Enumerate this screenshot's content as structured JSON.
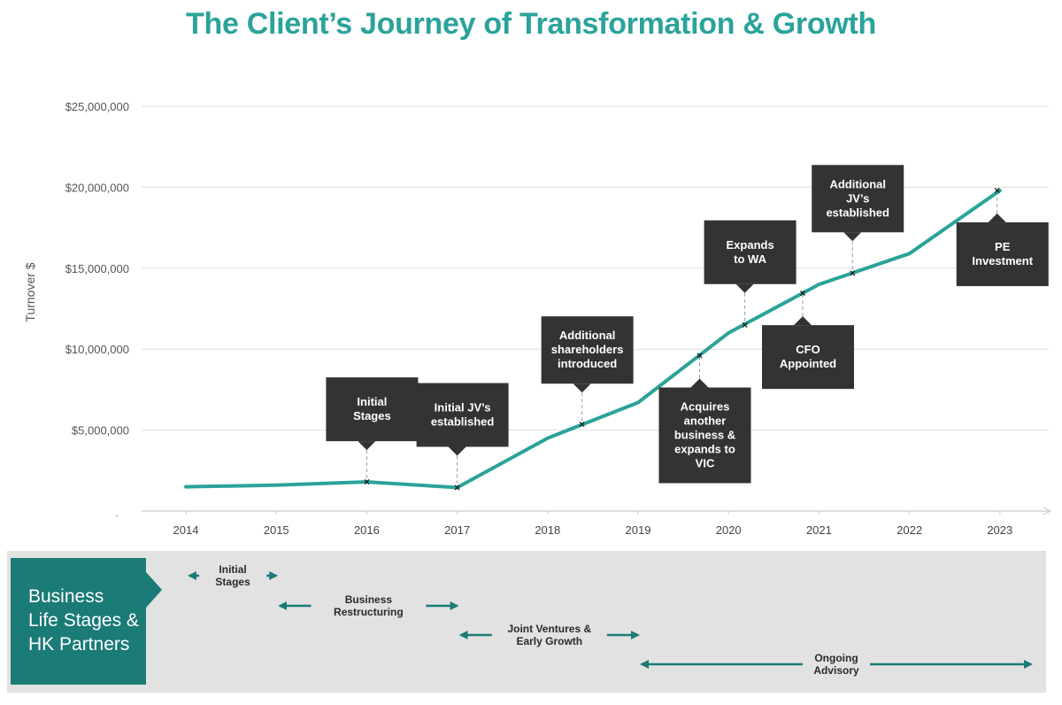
{
  "header": {
    "title": "The Client’s Journey of Transformation & Growth"
  },
  "chart_data": {
    "type": "line",
    "title": "The Client’s Journey of Transformation & Growth",
    "xlabel": "",
    "ylabel": "Turnover $",
    "ylim": [
      0,
      25000000
    ],
    "y_ticks": [
      "$5,000,000",
      "$10,000,000",
      "$15,000,000",
      "$20,000,000",
      "$25,000,000"
    ],
    "y_tick_values": [
      5000000,
      10000000,
      15000000,
      20000000,
      25000000
    ],
    "zero_tick": ".",
    "categories": [
      "2014",
      "2015",
      "2016",
      "2017",
      "2018",
      "2019",
      "2020",
      "2021",
      "2022",
      "2023"
    ],
    "grid": true,
    "series": [
      {
        "name": "Turnover",
        "color": "#2aa39a",
        "points": [
          {
            "x": 2014,
            "y": 1500000
          },
          {
            "x": 2015,
            "y": 1600000
          },
          {
            "x": 2016,
            "y": 1800000
          },
          {
            "x": 2017,
            "y": 1450000
          },
          {
            "x": 2018,
            "y": 4500000
          },
          {
            "x": 2019,
            "y": 6700000
          },
          {
            "x": 2020,
            "y": 11000000
          },
          {
            "x": 2021,
            "y": 14000000
          },
          {
            "x": 2022,
            "y": 15900000
          },
          {
            "x": 2023,
            "y": 19800000
          }
        ]
      }
    ],
    "annotations": [
      {
        "x": 2016.0,
        "y": 1800000,
        "text": [
          "Initial",
          "Stages"
        ],
        "placement": "above"
      },
      {
        "x": 2017.0,
        "y": 1450000,
        "text": [
          "Initial JV’s",
          "established"
        ],
        "placement": "above"
      },
      {
        "x": 2018.38,
        "y": 5350000,
        "text": [
          "Additional",
          "shareholders",
          "introduced"
        ],
        "placement": "above"
      },
      {
        "x": 2019.68,
        "y": 9600000,
        "text": [
          "Acquires",
          "another",
          "business &",
          "expands to",
          "VIC"
        ],
        "placement": "below"
      },
      {
        "x": 2020.18,
        "y": 11500000,
        "text": [
          "Expands",
          "to WA"
        ],
        "placement": "above"
      },
      {
        "x": 2020.82,
        "y": 13450000,
        "text": [
          "CFO",
          "Appointed"
        ],
        "placement": "below"
      },
      {
        "x": 2021.37,
        "y": 14700000,
        "text": [
          "Additional",
          "JV’s",
          "established"
        ],
        "placement": "above"
      },
      {
        "x": 2022.97,
        "y": 19800000,
        "text": [
          "PE",
          "Investment"
        ],
        "placement": "below"
      }
    ]
  },
  "stages": {
    "title_lines": [
      "Business",
      "Life Stages &",
      "HK Partners"
    ],
    "items": [
      {
        "label": [
          "Initial",
          "Stages"
        ],
        "from": 2014,
        "to": 2015
      },
      {
        "label": [
          "Business",
          "Restructuring"
        ],
        "from": 2015,
        "to": 2017
      },
      {
        "label": [
          "Joint Ventures &",
          "Early Growth"
        ],
        "from": 2017,
        "to": 2019
      },
      {
        "label": [
          "Ongoing",
          "Advisory"
        ],
        "from": 2019,
        "to": 2023.4
      }
    ]
  },
  "colors": {
    "accent": "#2aa39a",
    "callout": "#333333",
    "stage_box": "#1b7b76",
    "stage_band": "#e2e2e2",
    "stage_arrow": "#1b7b76"
  }
}
